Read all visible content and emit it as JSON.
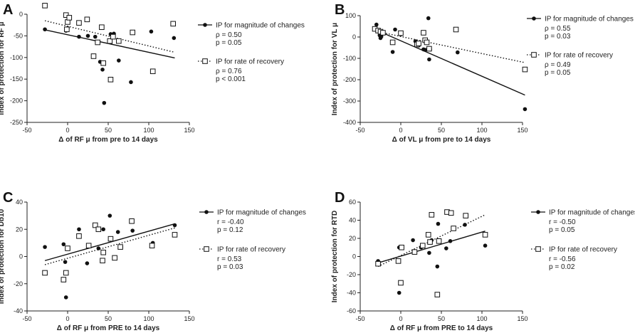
{
  "figure": {
    "panel_count": 4
  },
  "chart_data": [
    {
      "type": "scatter",
      "panel": "A",
      "xlabel": "Δ of RF μ from pre to 14 days",
      "ylabel": "Index of protection for RF μ",
      "xlim": [
        -50,
        150
      ],
      "ylim": [
        -250,
        0
      ],
      "xticks": [
        -50,
        0,
        50,
        100,
        150
      ],
      "yticks": [
        -250,
        -200,
        -150,
        -100,
        -50,
        0
      ],
      "series": [
        {
          "name": "IP for magnitude of changes",
          "marker": "filled-circle",
          "line": "solid",
          "stats": [
            "ρ = 0.50",
            "p = 0.05"
          ],
          "points": [
            [
              -28,
              -35
            ],
            [
              -2,
              -38
            ],
            [
              -1,
              -35
            ],
            [
              0,
              -32
            ],
            [
              14,
              -52
            ],
            [
              25,
              -50
            ],
            [
              34,
              -52
            ],
            [
              40,
              -110
            ],
            [
              43,
              -128
            ],
            [
              45,
              -205
            ],
            [
              53,
              -46
            ],
            [
              57,
              -45
            ],
            [
              63,
              -107
            ],
            [
              78,
              -157
            ],
            [
              103,
              -40
            ],
            [
              131,
              -55
            ]
          ],
          "fit": [
            [
              -28,
              -36
            ],
            [
              132,
              -101
            ]
          ]
        },
        {
          "name": "IP for rate of recovery",
          "marker": "open-square",
          "line": "dotted",
          "stats": [
            "ρ = 0.76",
            "p < 0.001"
          ],
          "points": [
            [
              -28,
              20
            ],
            [
              -2,
              -2
            ],
            [
              0,
              -18
            ],
            [
              -1,
              -35
            ],
            [
              2,
              -8
            ],
            [
              14,
              -20
            ],
            [
              24,
              -12
            ],
            [
              32,
              -97
            ],
            [
              37,
              -65
            ],
            [
              42,
              -30
            ],
            [
              44,
              -113
            ],
            [
              52,
              -62
            ],
            [
              56,
              -52
            ],
            [
              63,
              -62
            ],
            [
              53,
              -151
            ],
            [
              80,
              -42
            ],
            [
              105,
              -132
            ],
            [
              130,
              -22
            ]
          ],
          "fit": [
            [
              -28,
              -15
            ],
            [
              132,
              -88
            ]
          ]
        }
      ]
    },
    {
      "type": "scatter",
      "panel": "B",
      "xlabel": "Δ of VL μ from pre to 14 days",
      "ylabel": "Index of protection for VL μ",
      "xlim": [
        -50,
        150
      ],
      "ylim": [
        -400,
        100
      ],
      "xticks": [
        -50,
        0,
        50,
        100,
        150
      ],
      "yticks": [
        -400,
        -300,
        -200,
        -100,
        0,
        100
      ],
      "series": [
        {
          "name": "IP for magnitude of changes",
          "marker": "filled-circle",
          "line": "solid",
          "stats": [
            "ρ = 0.55",
            "p = 0.03"
          ],
          "points": [
            [
              -30,
              58
            ],
            [
              -26,
              8
            ],
            [
              -25,
              -5
            ],
            [
              -24,
              2
            ],
            [
              -23,
              15
            ],
            [
              -10,
              -70
            ],
            [
              -7,
              35
            ],
            [
              0,
              12
            ],
            [
              18,
              -20
            ],
            [
              20,
              -30
            ],
            [
              22,
              -40
            ],
            [
              28,
              -58
            ],
            [
              30,
              -60
            ],
            [
              35,
              -105
            ],
            [
              36,
              -58
            ],
            [
              34,
              88
            ],
            [
              70,
              -72
            ],
            [
              153,
              -338
            ]
          ],
          "fit": [
            [
              -30,
              32
            ],
            [
              153,
              -272
            ]
          ]
        },
        {
          "name": "IP for rate of recovery",
          "marker": "open-square",
          "line": "dotted",
          "stats": [
            "ρ = 0.49",
            "p = 0.05"
          ],
          "points": [
            [
              -32,
              38
            ],
            [
              -28,
              30
            ],
            [
              -25,
              25
            ],
            [
              -22,
              20
            ],
            [
              -10,
              -25
            ],
            [
              0,
              18
            ],
            [
              20,
              -35
            ],
            [
              22,
              -30
            ],
            [
              28,
              20
            ],
            [
              30,
              -15
            ],
            [
              32,
              -25
            ],
            [
              35,
              -55
            ],
            [
              68,
              35
            ],
            [
              153,
              -152
            ]
          ],
          "fit": [
            [
              -32,
              28
            ],
            [
              153,
              -120
            ]
          ]
        }
      ]
    },
    {
      "type": "scatter",
      "panel": "C",
      "xlabel": "Δ of RF μ from PRE to 14 days",
      "ylabel": "Index of protection for Db10",
      "xlim": [
        -50,
        150
      ],
      "ylim": [
        -40,
        40
      ],
      "xticks": [
        -50,
        0,
        50,
        100,
        150
      ],
      "yticks": [
        -40,
        -20,
        0,
        20,
        40
      ],
      "series": [
        {
          "name": "IP for magnitude of changes",
          "marker": "filled-circle",
          "line": "solid",
          "stats": [
            "r = -0.40",
            "p = 0.12"
          ],
          "points": [
            [
              -28,
              7
            ],
            [
              -5,
              9
            ],
            [
              -3,
              -4
            ],
            [
              -2,
              -30
            ],
            [
              14,
              20
            ],
            [
              24,
              -5
            ],
            [
              38,
              6
            ],
            [
              44,
              20
            ],
            [
              52,
              30
            ],
            [
              62,
              18
            ],
            [
              66,
              7
            ],
            [
              80,
              19
            ],
            [
              105,
              10
            ],
            [
              132,
              23
            ]
          ],
          "fit": [
            [
              -28,
              -3
            ],
            [
              132,
              24
            ]
          ]
        },
        {
          "name": "IP for rate of recovery",
          "marker": "open-square",
          "line": "dotted",
          "stats": [
            "r = 0.53",
            "p = 0.03"
          ],
          "points": [
            [
              -28,
              -12
            ],
            [
              -5,
              -17
            ],
            [
              -2,
              -12
            ],
            [
              0,
              6
            ],
            [
              14,
              15
            ],
            [
              26,
              8
            ],
            [
              34,
              23
            ],
            [
              38,
              20
            ],
            [
              43,
              -3
            ],
            [
              44,
              3
            ],
            [
              53,
              13
            ],
            [
              58,
              -1
            ],
            [
              65,
              7
            ],
            [
              79,
              26
            ],
            [
              104,
              8
            ],
            [
              132,
              16
            ]
          ],
          "fit": [
            [
              -28,
              -6
            ],
            [
              132,
              21
            ]
          ]
        }
      ]
    },
    {
      "type": "scatter",
      "panel": "D",
      "xlabel": "Δ of RF μ from PRE to 14 days",
      "ylabel": "Index of protection for RTD",
      "xlim": [
        -50,
        150
      ],
      "ylim": [
        -60,
        60
      ],
      "xticks": [
        -50,
        0,
        50,
        100,
        150
      ],
      "yticks": [
        -60,
        -40,
        -20,
        0,
        20,
        40,
        60
      ],
      "series": [
        {
          "name": "IP for magnitude of changes",
          "marker": "filled-circle",
          "line": "solid",
          "stats": [
            "r = -0.50",
            "p = 0.05"
          ],
          "points": [
            [
              -28,
              -5
            ],
            [
              -2,
              -40
            ],
            [
              -2,
              10
            ],
            [
              15,
              18
            ],
            [
              25,
              10
            ],
            [
              35,
              4
            ],
            [
              38,
              18
            ],
            [
              45,
              -11
            ],
            [
              46,
              36
            ],
            [
              56,
              9
            ],
            [
              61,
              17
            ],
            [
              79,
              35
            ],
            [
              104,
              12
            ]
          ],
          "fit": [
            [
              -28,
              -7
            ],
            [
              104,
              28
            ]
          ]
        },
        {
          "name": "IP for rate of recovery",
          "marker": "open-square",
          "line": "dotted",
          "stats": [
            "r = -0.56",
            "p = 0.02"
          ],
          "points": [
            [
              -28,
              -8
            ],
            [
              -3,
              -5
            ],
            [
              0,
              -29
            ],
            [
              1,
              10
            ],
            [
              17,
              5
            ],
            [
              27,
              12
            ],
            [
              34,
              24
            ],
            [
              36,
              16
            ],
            [
              38,
              46
            ],
            [
              45,
              -42
            ],
            [
              47,
              17
            ],
            [
              57,
              49
            ],
            [
              62,
              48
            ],
            [
              65,
              31
            ],
            [
              80,
              45
            ],
            [
              104,
              24
            ]
          ],
          "fit": [
            [
              -28,
              -11
            ],
            [
              104,
              46
            ]
          ]
        }
      ]
    }
  ]
}
